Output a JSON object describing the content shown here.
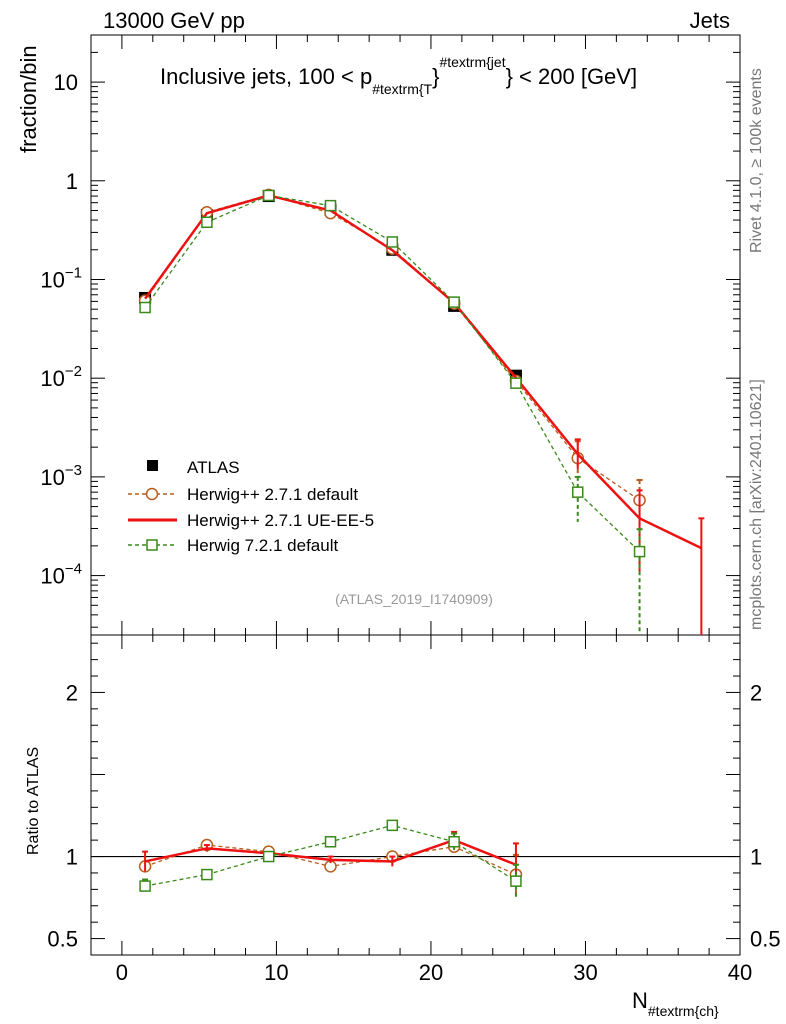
{
  "header": {
    "energy_label": "13000 GeV pp",
    "process_label": "Jets",
    "rivet_label": "Rivet 4.1.0, ≥ 100k events",
    "site_label": "mcplots.cern.ch [arXiv:2401.10621]",
    "analysis_ref": "(ATLAS_2019_I1740909)"
  },
  "chart_data": {
    "type": "scatter",
    "title": {
      "prefix": "Inclusive jets, 100 < p",
      "sub": "#textrm{T",
      "sup": "#textrm{jet",
      "suffix": "} < 200 [GeV]",
      "close_brace": "}"
    },
    "xlabel": {
      "main": "N",
      "sub": "#textrm{ch}"
    },
    "ylabel": "fraction/bin",
    "ratio_ylabel": "Ratio to ATLAS",
    "xlim": [
      -2,
      40
    ],
    "ylim": [
      2.5e-05,
      30
    ],
    "yscale": "log",
    "ratio_ylim": [
      0.4,
      2.35
    ],
    "x_ticks": [
      0,
      10,
      20,
      30,
      40
    ],
    "x_tick_labels": [
      "0",
      "10",
      "20",
      "30",
      "40"
    ],
    "y_ticks": [
      {
        "value": 10,
        "base": "10",
        "exp": ""
      },
      {
        "value": 1,
        "base": "1",
        "exp": ""
      },
      {
        "value": 0.1,
        "base": "10",
        "exp": "−1"
      },
      {
        "value": 0.01,
        "base": "10",
        "exp": "−2"
      },
      {
        "value": 0.001,
        "base": "10",
        "exp": "−3"
      },
      {
        "value": 0.0001,
        "base": "10",
        "exp": "−4"
      }
    ],
    "ratio_ticks": [
      {
        "value": 2,
        "label": "2"
      },
      {
        "value": 1,
        "label": "1"
      },
      {
        "value": 0.5,
        "label": "0.5"
      }
    ],
    "legend_position": "middle-left",
    "series": [
      {
        "name": "ATLAS",
        "style": "data",
        "color": "#000000",
        "x": [
          1.5,
          5.5,
          9.5,
          13.5,
          17.5,
          21.5,
          25.5
        ],
        "y": [
          0.065,
          0.45,
          0.7,
          0.51,
          0.2,
          0.054,
          0.0106
        ]
      },
      {
        "name": "Herwig++ 2.7.1 default",
        "style": "circle-dashed",
        "color": "#b85c1c",
        "x": [
          1.5,
          5.5,
          9.5,
          13.5,
          17.5,
          21.5,
          25.5,
          29.5,
          33.5
        ],
        "y": [
          0.061,
          0.48,
          0.72,
          0.47,
          0.205,
          0.057,
          0.0094,
          0.00155,
          0.00058
        ],
        "err_up": [
          0,
          0,
          0,
          0,
          0,
          0,
          0,
          0.00075,
          0.00035
        ],
        "err_down": [
          0,
          0,
          0,
          0,
          0,
          0,
          0,
          0.00055,
          0.0003
        ],
        "ratio": [
          0.94,
          1.07,
          1.03,
          0.94,
          1.0,
          1.06,
          0.89
        ],
        "ratio_err": [
          0,
          0,
          0,
          0,
          0,
          0,
          0.12
        ]
      },
      {
        "name": "Herwig++ 2.7.1 UE-EE-5",
        "style": "solid",
        "color": "#ee1111",
        "x": [
          1.5,
          5.5,
          9.5,
          13.5,
          17.5,
          21.5,
          25.5,
          29.5,
          33.5,
          37.5
        ],
        "y": [
          0.064,
          0.47,
          0.71,
          0.5,
          0.198,
          0.058,
          0.0101,
          0.0017,
          0.00038,
          0.00019
        ],
        "err_up": [
          0,
          0,
          0,
          0,
          0,
          0,
          0,
          0.0007,
          0.00035,
          0.00019
        ],
        "err_down": [
          0,
          0,
          0,
          0,
          0,
          0,
          0,
          0.0005,
          0.00027,
          0.00019
        ],
        "ratio": [
          0.97,
          1.05,
          1.02,
          0.98,
          0.97,
          1.1,
          0.95
        ],
        "ratio_err": [
          0.06,
          0.02,
          0,
          0.02,
          0.03,
          0.05,
          0.13
        ]
      },
      {
        "name": "Herwig 7.2.1 default",
        "style": "square-dashed",
        "color": "#3a8a1a",
        "x": [
          1.5,
          5.5,
          9.5,
          13.5,
          17.5,
          21.5,
          25.5,
          29.5,
          33.5
        ],
        "y": [
          0.052,
          0.38,
          0.71,
          0.56,
          0.24,
          0.059,
          0.0089,
          0.0007,
          0.000175
        ],
        "err_up": [
          0,
          0,
          0,
          0,
          0,
          0,
          0,
          0.0003,
          0.00012
        ],
        "err_down": [
          0,
          0,
          0,
          0,
          0,
          0,
          0,
          0.00035,
          0.00017
        ],
        "ratio": [
          0.82,
          0.89,
          1.0,
          1.09,
          1.19,
          1.09,
          0.85
        ],
        "ratio_err": [
          0.04,
          0,
          0,
          0,
          0,
          0.05,
          0.1
        ]
      }
    ]
  }
}
